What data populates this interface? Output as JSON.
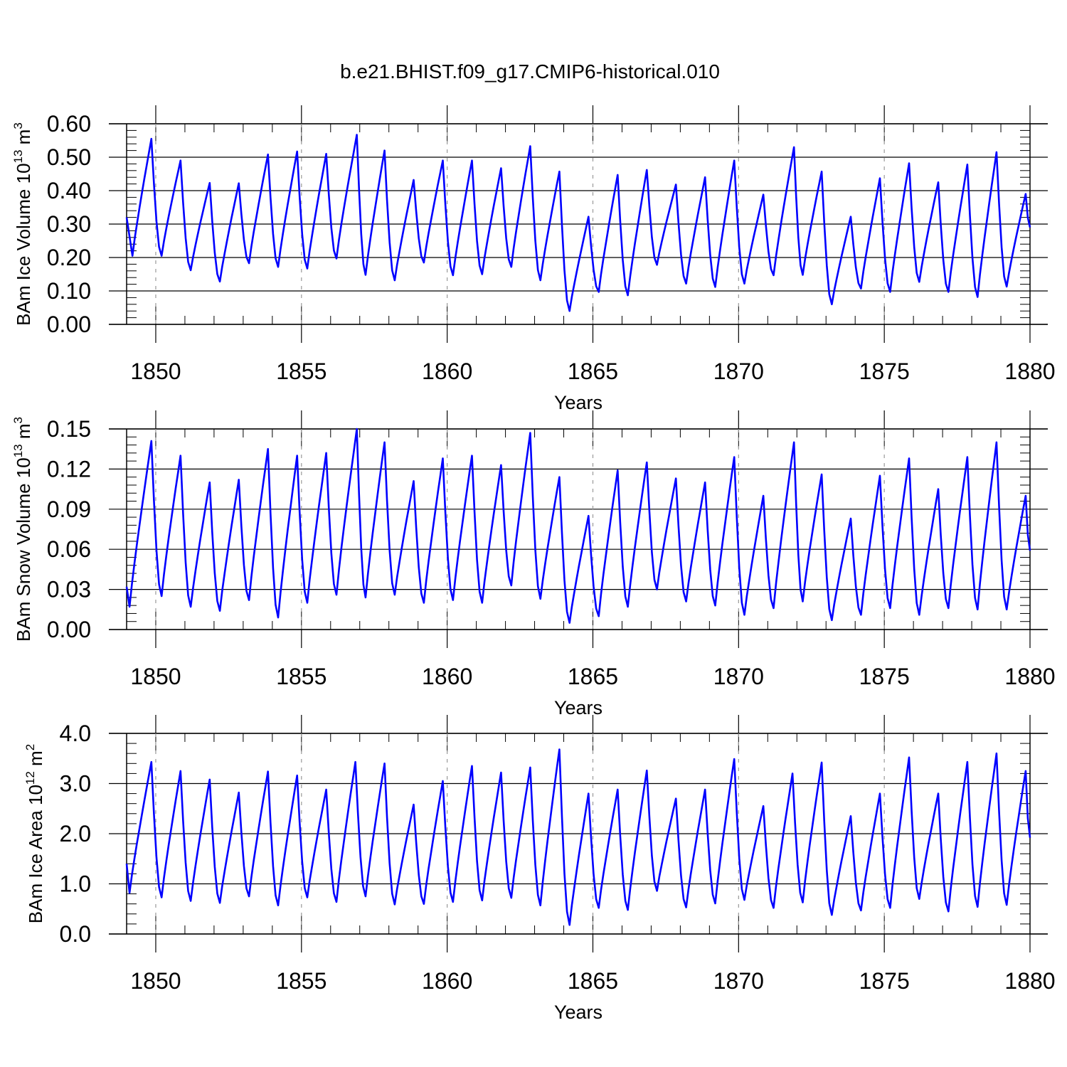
{
  "figure": {
    "title": "b.e21.BHIST.f09_g17.CMIP6-historical.010"
  },
  "chart_data": [
    {
      "type": "line",
      "ylabel": "BAm Ice Volume 10",
      "ylabel_exp": "13",
      "ylabel_unit": " m",
      "ylabel_unit_exp": "3",
      "xlabel": "Years",
      "xlim": [
        1849.0,
        1880.0
      ],
      "ylim": [
        0.0,
        0.6
      ],
      "xticks": [
        1850,
        1855,
        1860,
        1865,
        1870,
        1875,
        1880
      ],
      "xtick_labels": [
        "1850",
        "1855",
        "1860",
        "1865",
        "1870",
        "1875",
        "1880"
      ],
      "yticks": [
        0.0,
        0.1,
        0.2,
        0.3,
        0.4,
        0.5,
        0.6
      ],
      "ytick_labels": [
        "0.00",
        "0.10",
        "0.20",
        "0.30",
        "0.40",
        "0.50",
        "0.60"
      ],
      "line_color": "#0000ff",
      "grid_color": "#999999",
      "series": [
        {
          "minima": [
            [
              1849.0,
              0.32
            ],
            [
              1849.2,
              0.205
            ],
            [
              1850.2,
              0.205
            ],
            [
              1851.2,
              0.162
            ],
            [
              1852.2,
              0.128
            ],
            [
              1853.2,
              0.183
            ],
            [
              1854.2,
              0.172
            ],
            [
              1855.2,
              0.167
            ],
            [
              1856.2,
              0.197
            ],
            [
              1857.2,
              0.148
            ],
            [
              1858.2,
              0.132
            ],
            [
              1859.2,
              0.185
            ],
            [
              1860.2,
              0.147
            ],
            [
              1861.2,
              0.15
            ],
            [
              1862.2,
              0.172
            ],
            [
              1863.2,
              0.132
            ],
            [
              1864.2,
              0.04
            ],
            [
              1865.2,
              0.097
            ],
            [
              1866.2,
              0.087
            ],
            [
              1867.2,
              0.178
            ],
            [
              1868.2,
              0.122
            ],
            [
              1869.2,
              0.112
            ],
            [
              1870.2,
              0.122
            ],
            [
              1871.2,
              0.147
            ],
            [
              1872.2,
              0.148
            ],
            [
              1873.2,
              0.06
            ],
            [
              1874.2,
              0.107
            ],
            [
              1875.2,
              0.097
            ],
            [
              1876.2,
              0.127
            ],
            [
              1877.2,
              0.097
            ],
            [
              1878.2,
              0.082
            ],
            [
              1879.2,
              0.113
            ],
            [
              1880.0,
              0.29
            ]
          ],
          "maxima": [
            [
              1849.85,
              0.555
            ],
            [
              1850.85,
              0.49
            ],
            [
              1851.85,
              0.423
            ],
            [
              1852.85,
              0.422
            ],
            [
              1853.85,
              0.508
            ],
            [
              1854.85,
              0.517
            ],
            [
              1855.85,
              0.51
            ],
            [
              1856.9,
              0.567
            ],
            [
              1857.85,
              0.52
            ],
            [
              1858.85,
              0.432
            ],
            [
              1859.85,
              0.49
            ],
            [
              1860.85,
              0.49
            ],
            [
              1861.85,
              0.467
            ],
            [
              1862.85,
              0.533
            ],
            [
              1863.85,
              0.457
            ],
            [
              1864.85,
              0.322
            ],
            [
              1865.85,
              0.447
            ],
            [
              1866.85,
              0.462
            ],
            [
              1867.85,
              0.418
            ],
            [
              1868.85,
              0.44
            ],
            [
              1869.85,
              0.49
            ],
            [
              1870.85,
              0.388
            ],
            [
              1871.9,
              0.53
            ],
            [
              1872.85,
              0.457
            ],
            [
              1873.85,
              0.322
            ],
            [
              1874.85,
              0.437
            ],
            [
              1875.85,
              0.482
            ],
            [
              1876.85,
              0.425
            ],
            [
              1877.85,
              0.478
            ],
            [
              1878.85,
              0.515
            ],
            [
              1879.85,
              0.39
            ]
          ]
        }
      ]
    },
    {
      "type": "line",
      "ylabel": "BAm Snow Volume 10",
      "ylabel_exp": "13",
      "ylabel_unit": " m",
      "ylabel_unit_exp": "3",
      "xlabel": "Years",
      "xlim": [
        1849.0,
        1880.0
      ],
      "ylim": [
        0.0,
        0.15
      ],
      "xticks": [
        1850,
        1855,
        1860,
        1865,
        1870,
        1875,
        1880
      ],
      "xtick_labels": [
        "1850",
        "1855",
        "1860",
        "1865",
        "1870",
        "1875",
        "1880"
      ],
      "yticks": [
        0.0,
        0.03,
        0.06,
        0.09,
        0.12,
        0.15
      ],
      "ytick_labels": [
        "0.00",
        "0.03",
        "0.06",
        "0.09",
        "0.12",
        "0.15"
      ],
      "line_color": "#0000ff",
      "grid_color": "#999999",
      "series": [
        {
          "minima": [
            [
              1849.0,
              0.032
            ],
            [
              1849.1,
              0.017
            ],
            [
              1850.2,
              0.025
            ],
            [
              1851.2,
              0.017
            ],
            [
              1852.2,
              0.014
            ],
            [
              1853.2,
              0.022
            ],
            [
              1854.2,
              0.009
            ],
            [
              1855.2,
              0.02
            ],
            [
              1856.2,
              0.026
            ],
            [
              1857.2,
              0.024
            ],
            [
              1858.2,
              0.026
            ],
            [
              1859.2,
              0.02
            ],
            [
              1860.2,
              0.022
            ],
            [
              1861.2,
              0.02
            ],
            [
              1862.2,
              0.033
            ],
            [
              1863.2,
              0.023
            ],
            [
              1864.2,
              0.005
            ],
            [
              1865.2,
              0.01
            ],
            [
              1866.2,
              0.017
            ],
            [
              1867.2,
              0.03
            ],
            [
              1868.2,
              0.021
            ],
            [
              1869.2,
              0.018
            ],
            [
              1870.2,
              0.011
            ],
            [
              1871.2,
              0.016
            ],
            [
              1872.2,
              0.021
            ],
            [
              1873.2,
              0.007
            ],
            [
              1874.2,
              0.011
            ],
            [
              1875.2,
              0.016
            ],
            [
              1876.2,
              0.011
            ],
            [
              1877.2,
              0.016
            ],
            [
              1878.2,
              0.015
            ],
            [
              1879.2,
              0.015
            ],
            [
              1880.0,
              0.059
            ]
          ],
          "maxima": [
            [
              1849.85,
              0.141
            ],
            [
              1850.85,
              0.13
            ],
            [
              1851.85,
              0.11
            ],
            [
              1852.85,
              0.112
            ],
            [
              1853.85,
              0.135
            ],
            [
              1854.85,
              0.13
            ],
            [
              1855.85,
              0.132
            ],
            [
              1856.9,
              0.15
            ],
            [
              1857.85,
              0.14
            ],
            [
              1858.85,
              0.111
            ],
            [
              1859.85,
              0.128
            ],
            [
              1860.85,
              0.13
            ],
            [
              1861.85,
              0.123
            ],
            [
              1862.85,
              0.147
            ],
            [
              1863.85,
              0.114
            ],
            [
              1864.85,
              0.085
            ],
            [
              1865.85,
              0.119
            ],
            [
              1866.85,
              0.125
            ],
            [
              1867.85,
              0.113
            ],
            [
              1868.85,
              0.11
            ],
            [
              1869.85,
              0.129
            ],
            [
              1870.85,
              0.1
            ],
            [
              1871.9,
              0.14
            ],
            [
              1872.85,
              0.116
            ],
            [
              1873.85,
              0.083
            ],
            [
              1874.85,
              0.115
            ],
            [
              1875.85,
              0.128
            ],
            [
              1876.85,
              0.105
            ],
            [
              1877.85,
              0.129
            ],
            [
              1878.85,
              0.14
            ],
            [
              1879.85,
              0.1
            ]
          ]
        }
      ]
    },
    {
      "type": "line",
      "ylabel": "BAm Ice Area 10",
      "ylabel_exp": "12",
      "ylabel_unit": " m",
      "ylabel_unit_exp": "2",
      "xlabel": "Years",
      "xlim": [
        1849.0,
        1880.0
      ],
      "ylim": [
        0.0,
        4.0
      ],
      "xticks": [
        1850,
        1855,
        1860,
        1865,
        1870,
        1875,
        1880
      ],
      "xtick_labels": [
        "1850",
        "1855",
        "1860",
        "1865",
        "1870",
        "1875",
        "1880"
      ],
      "yticks": [
        0.0,
        1.0,
        2.0,
        3.0,
        4.0
      ],
      "ytick_labels": [
        "0.0",
        "1.0",
        "2.0",
        "3.0",
        "4.0"
      ],
      "line_color": "#0000ff",
      "grid_color": "#999999",
      "series": [
        {
          "minima": [
            [
              1849.0,
              1.4
            ],
            [
              1849.1,
              0.82
            ],
            [
              1850.2,
              0.73
            ],
            [
              1851.2,
              0.66
            ],
            [
              1852.2,
              0.62
            ],
            [
              1853.2,
              0.75
            ],
            [
              1854.2,
              0.57
            ],
            [
              1855.2,
              0.73
            ],
            [
              1856.2,
              0.64
            ],
            [
              1857.2,
              0.75
            ],
            [
              1858.2,
              0.59
            ],
            [
              1859.2,
              0.6
            ],
            [
              1860.2,
              0.64
            ],
            [
              1861.2,
              0.67
            ],
            [
              1862.2,
              0.72
            ],
            [
              1863.2,
              0.57
            ],
            [
              1864.2,
              0.18
            ],
            [
              1865.2,
              0.52
            ],
            [
              1866.2,
              0.48
            ],
            [
              1867.2,
              0.86
            ],
            [
              1868.2,
              0.53
            ],
            [
              1869.2,
              0.61
            ],
            [
              1870.2,
              0.68
            ],
            [
              1871.2,
              0.52
            ],
            [
              1872.2,
              0.63
            ],
            [
              1873.2,
              0.38
            ],
            [
              1874.2,
              0.47
            ],
            [
              1875.2,
              0.52
            ],
            [
              1876.2,
              0.7
            ],
            [
              1877.2,
              0.45
            ],
            [
              1878.2,
              0.54
            ],
            [
              1879.2,
              0.58
            ],
            [
              1880.0,
              1.92
            ]
          ],
          "maxima": [
            [
              1849.85,
              3.43
            ],
            [
              1850.85,
              3.25
            ],
            [
              1851.85,
              3.08
            ],
            [
              1852.85,
              2.82
            ],
            [
              1853.85,
              3.24
            ],
            [
              1854.85,
              3.16
            ],
            [
              1855.85,
              2.88
            ],
            [
              1856.85,
              3.43
            ],
            [
              1857.85,
              3.4
            ],
            [
              1858.85,
              2.58
            ],
            [
              1859.85,
              3.05
            ],
            [
              1860.85,
              3.35
            ],
            [
              1861.85,
              3.22
            ],
            [
              1862.85,
              3.32
            ],
            [
              1863.85,
              3.68
            ],
            [
              1864.85,
              2.8
            ],
            [
              1865.85,
              2.88
            ],
            [
              1866.85,
              3.26
            ],
            [
              1867.85,
              2.7
            ],
            [
              1868.85,
              2.88
            ],
            [
              1869.85,
              3.49
            ],
            [
              1870.85,
              2.55
            ],
            [
              1871.85,
              3.2
            ],
            [
              1872.85,
              3.42
            ],
            [
              1873.85,
              2.35
            ],
            [
              1874.85,
              2.8
            ],
            [
              1875.85,
              3.52
            ],
            [
              1876.85,
              2.8
            ],
            [
              1877.85,
              3.43
            ],
            [
              1878.85,
              3.6
            ],
            [
              1879.85,
              3.25
            ]
          ]
        }
      ]
    }
  ]
}
